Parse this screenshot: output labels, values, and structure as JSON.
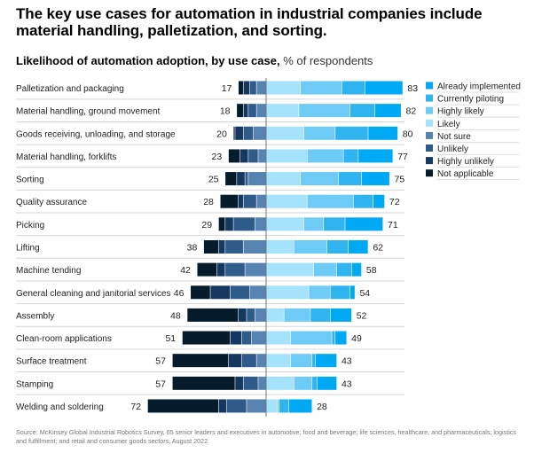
{
  "chart_data": {
    "type": "bar",
    "orientation": "horizontal-diverging-stacked",
    "title": "The key use cases for automation in industrial companies include material handling, palletization, and sorting.",
    "subtitle": "Likelihood of automation adoption, by use case,",
    "unit": "% of respondents",
    "categories": [
      "Palletization and packaging",
      "Material handling, ground movement",
      "Goods receiving, unloading, and storage",
      "Material handling, forklifts",
      "Sorting",
      "Quality assurance",
      "Picking",
      "Lifting",
      "Machine tending",
      "General cleaning and janitorial services",
      "Assembly",
      "Clean-room applications",
      "Surface treatment",
      "Stamping",
      "Welding and soldering"
    ],
    "left_totals": [
      17,
      18,
      20,
      23,
      25,
      28,
      29,
      38,
      42,
      46,
      48,
      51,
      57,
      57,
      72
    ],
    "right_totals": [
      83,
      82,
      80,
      77,
      75,
      72,
      71,
      62,
      58,
      54,
      52,
      49,
      43,
      43,
      28
    ],
    "series": [
      {
        "name": "Already implemented",
        "side": "right",
        "color": "#00a9f4",
        "values": [
          23,
          16,
          18,
          21,
          17,
          7,
          23,
          12,
          6,
          3,
          13,
          7,
          13,
          12,
          14
        ]
      },
      {
        "name": "Currently piloting",
        "side": "right",
        "color": "#2fb4f0",
        "values": [
          14,
          15,
          20,
          9,
          14,
          12,
          13,
          13,
          9,
          12,
          12,
          2,
          2,
          3,
          6
        ]
      },
      {
        "name": "Highly likely",
        "side": "right",
        "color": "#6ecbf6",
        "values": [
          25,
          31,
          19,
          22,
          23,
          28,
          12,
          20,
          14,
          13,
          16,
          25,
          13,
          11,
          1
        ]
      },
      {
        "name": "Likely",
        "side": "right",
        "color": "#a4e3fb",
        "values": [
          21,
          20,
          23,
          25,
          21,
          25,
          23,
          17,
          29,
          26,
          11,
          15,
          15,
          17,
          7
        ]
      },
      {
        "name": "Not sure",
        "side": "left",
        "color": "#5683b0",
        "values": [
          6,
          6,
          8,
          5,
          11,
          6,
          7,
          14,
          13,
          10,
          7,
          9,
          6,
          5,
          12
        ]
      },
      {
        "name": "Unlikely",
        "side": "left",
        "color": "#2f5b8b",
        "values": [
          4,
          5,
          6,
          6,
          2,
          8,
          13,
          11,
          12,
          12,
          5,
          6,
          9,
          9,
          12
        ]
      },
      {
        "name": "Highly unlikely",
        "side": "left",
        "color": "#14385f",
        "values": [
          4,
          3,
          5,
          5,
          5,
          3,
          5,
          4,
          5,
          12,
          5,
          7,
          8,
          5,
          5
        ]
      },
      {
        "name": "Not applicable",
        "side": "left",
        "color": "#061b2c",
        "values": [
          3,
          4,
          1,
          7,
          7,
          11,
          4,
          9,
          12,
          12,
          31,
          29,
          34,
          38,
          43
        ]
      }
    ],
    "legend_position": "right",
    "xlim": [
      -100,
      100
    ],
    "source": "Source: McKinsey Global Industrial Robotics Survey, 65 senior leaders and executives in automotive; food and beverage; life sciences, healthcare, and pharmaceuticals; logistics and fulfillment; and retail and consumer goods sectors, August 2022"
  }
}
